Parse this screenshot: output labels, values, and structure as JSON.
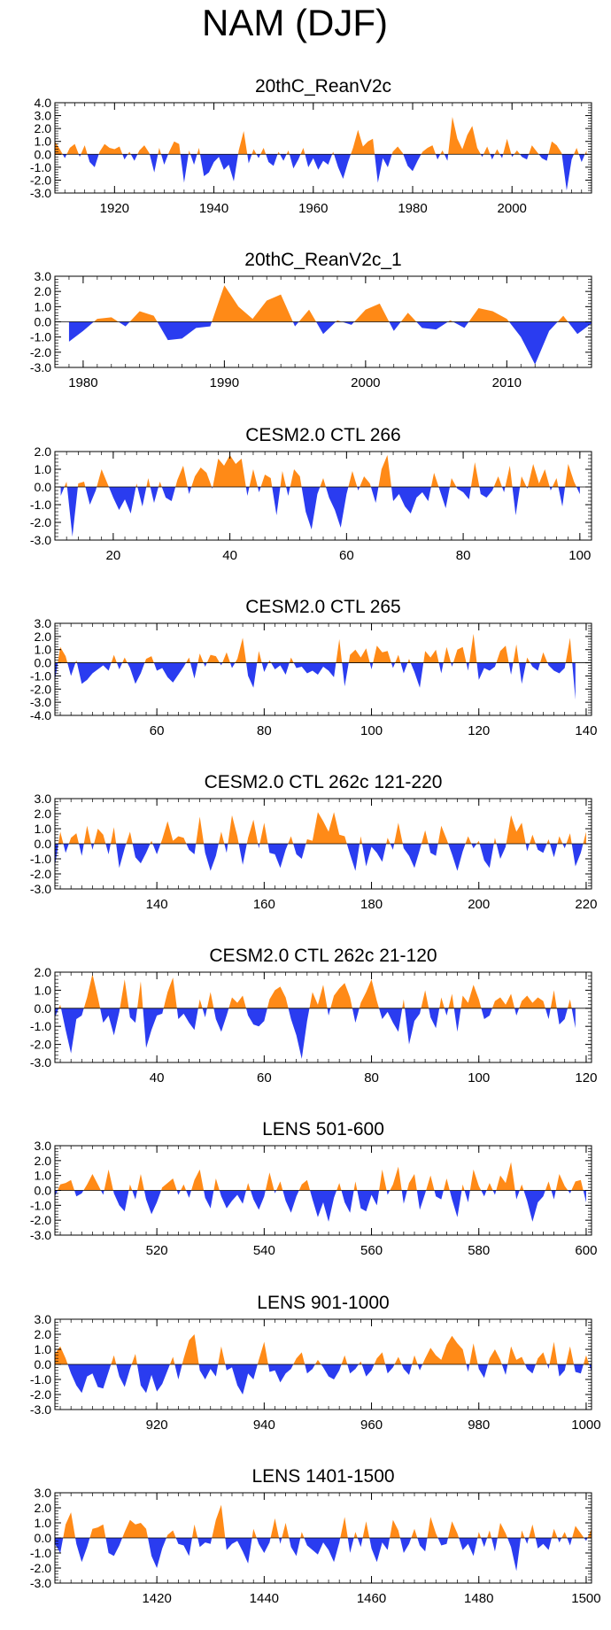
{
  "page": {
    "title": "NAM (DJF)"
  },
  "colors": {
    "positive": "#ff8a17",
    "negative": "#2a3cf0",
    "axis": "#000000"
  },
  "chart_data": [
    {
      "type": "area",
      "title": "20thC_ReanV2c",
      "xlim": [
        1908,
        2016
      ],
      "ylim": [
        -3.0,
        4.0
      ],
      "yticks": [
        "4.0",
        "3.0",
        "2.0",
        "1.0",
        "0.0",
        "-1.0",
        "-2.0",
        "-3.0"
      ],
      "xticks": [
        "1920",
        "1940",
        "1960",
        "1980",
        "2000"
      ],
      "x_start": 1908,
      "values": [
        1.0,
        0.4,
        -0.3,
        0.5,
        0.8,
        -0.2,
        0.7,
        -0.6,
        -1.0,
        0.2,
        0.8,
        0.5,
        0.4,
        0.6,
        -0.4,
        0.2,
        -0.5,
        0.3,
        0.7,
        0.1,
        -1.4,
        0.5,
        -0.8,
        0.2,
        1.0,
        0.8,
        -2.2,
        0.3,
        -0.8,
        0.5,
        -1.7,
        -1.4,
        -0.6,
        -0.2,
        -1.2,
        -0.8,
        -2.1,
        0.3,
        1.8,
        -0.7,
        0.4,
        -0.3,
        0.5,
        -0.6,
        -0.9,
        0.2,
        -0.5,
        0.3,
        -1.1,
        -0.4,
        0.5,
        -1.0,
        -0.3,
        -1.2,
        -0.5,
        -0.8,
        0.2,
        -1.0,
        -1.9,
        -0.6,
        0.5,
        1.9,
        0.6,
        1.0,
        1.2,
        -2.2,
        -0.3,
        -1.0,
        0.2,
        0.6,
        0.1,
        -0.9,
        -1.3,
        -0.5,
        0.2,
        0.5,
        0.7,
        -0.4,
        0.3,
        -0.5,
        2.9,
        1.2,
        0.4,
        1.5,
        2.2,
        0.5,
        -0.2,
        0.6,
        -0.4,
        0.4,
        -0.3,
        1.2,
        -0.2,
        0.3,
        -0.2,
        -0.4,
        0.7,
        0.2,
        -0.3,
        -0.5,
        1.0,
        0.7,
        0.1,
        -2.8,
        -0.4,
        0.5,
        -0.6,
        0.3
      ]
    },
    {
      "type": "area",
      "title": "20thC_ReanV2c_1",
      "xlim": [
        1978,
        2016
      ],
      "ylim": [
        -3.0,
        3.0
      ],
      "yticks": [
        "3.0",
        "2.0",
        "1.0",
        "0.0",
        "-1.0",
        "-2.0",
        "-3.0"
      ],
      "xticks": [
        "1980",
        "1990",
        "2000",
        "2010"
      ],
      "x_start": 1979,
      "values": [
        -1.3,
        -0.6,
        0.2,
        0.3,
        -0.3,
        0.7,
        0.4,
        -1.2,
        -1.1,
        -0.4,
        -0.3,
        2.4,
        1.0,
        0.2,
        1.4,
        1.8,
        -0.3,
        0.8,
        -0.8,
        0.1,
        -0.2,
        0.8,
        1.2,
        -0.6,
        0.6,
        -0.4,
        -0.5,
        0.1,
        -0.4,
        0.9,
        0.7,
        0.2,
        -1.0,
        -2.8,
        -0.6,
        0.4,
        -0.8,
        -0.1
      ]
    },
    {
      "type": "area",
      "title": "CESM2.0 CTL 266",
      "xlim": [
        10,
        102
      ],
      "ylim": [
        -3.0,
        2.0
      ],
      "yticks": [
        "2.0",
        "1.0",
        "0.0",
        "-1.0",
        "-2.0",
        "-3.0"
      ],
      "xticks": [
        "20",
        "40",
        "60",
        "80",
        "100"
      ],
      "x_start": 11,
      "values": [
        -0.5,
        0.3,
        -2.8,
        0.2,
        0.3,
        -1.0,
        -0.2,
        1.0,
        0.2,
        -0.6,
        -1.3,
        -0.7,
        -1.5,
        0.2,
        -1.1,
        0.5,
        -0.9,
        0.3,
        -0.6,
        -0.8,
        0.4,
        1.2,
        -0.4,
        0.6,
        1.1,
        0.8,
        -0.1,
        1.6,
        1.2,
        1.8,
        1.3,
        1.6,
        -0.5,
        1.0,
        -0.3,
        0.7,
        0.5,
        -1.6,
        0.9,
        -0.5,
        1.0,
        0.6,
        -1.4,
        -2.4,
        -0.4,
        0.5,
        -0.6,
        -1.3,
        -2.3,
        -0.4,
        0.9,
        -0.2,
        0.6,
        0.2,
        -0.9,
        1.0,
        1.8,
        -0.8,
        -0.4,
        -1.1,
        -1.5,
        -0.6,
        -0.3,
        -0.8,
        0.8,
        -0.2,
        -1.2,
        0.5,
        -0.1,
        -0.3,
        -0.7,
        1.4,
        -0.4,
        -0.6,
        -0.2,
        0.6,
        -0.3,
        1.2,
        -1.6,
        0.6,
        -0.1,
        1.3,
        0.2,
        1.0,
        -0.2,
        0.5,
        -1.1,
        1.3,
        0.3,
        -0.4
      ]
    },
    {
      "type": "area",
      "title": "CESM2.0 CTL 265",
      "xlim": [
        41,
        141
      ],
      "ylim": [
        -4.0,
        3.0
      ],
      "yticks": [
        "3.0",
        "2.0",
        "1.0",
        "0.0",
        "-1.0",
        "-2.0",
        "-3.0",
        "-4.0"
      ],
      "xticks": [
        "60",
        "80",
        "100",
        "120",
        "140"
      ],
      "x_start": 41,
      "values": [
        -1.4,
        1.2,
        0.5,
        -1.0,
        0.2,
        -1.6,
        -1.3,
        -0.8,
        -0.5,
        -0.2,
        -0.6,
        0.6,
        -0.5,
        0.4,
        -0.4,
        -1.6,
        -0.8,
        0.3,
        0.5,
        -0.6,
        -0.4,
        -1.1,
        -1.5,
        -0.9,
        -0.3,
        0.4,
        -1.2,
        0.7,
        -0.3,
        0.6,
        0.5,
        -0.2,
        0.8,
        -0.4,
        0.3,
        1.9,
        -1.0,
        -1.9,
        0.9,
        -0.7,
        0.2,
        -0.5,
        -0.2,
        -0.9,
        0.4,
        -0.4,
        -0.3,
        -0.8,
        -0.6,
        -0.9,
        -0.3,
        -0.6,
        -1.1,
        1.8,
        -1.8,
        0.6,
        1.0,
        0.4,
        1.1,
        -0.5,
        1.3,
        0.8,
        0.9,
        -0.4,
        0.6,
        -0.8,
        0.3,
        -0.7,
        -1.9,
        0.9,
        0.4,
        1.0,
        -0.8,
        1.2,
        -0.3,
        1.0,
        1.2,
        -0.6,
        2.2,
        -1.3,
        -0.4,
        -0.6,
        -0.3,
        0.9,
        1.3,
        -0.9,
        1.4,
        -1.6,
        0.4,
        -0.3,
        -0.6,
        0.8,
        -0.2,
        -0.6,
        -0.8,
        -0.4,
        1.9,
        -2.8
      ]
    },
    {
      "type": "area",
      "title": "CESM2.0 CTL 262c 121-220",
      "xlim": [
        121,
        221
      ],
      "ylim": [
        -3.0,
        3.0
      ],
      "yticks": [
        "3.0",
        "2.0",
        "1.0",
        "0.0",
        "-1.0",
        "-2.0",
        "-3.0"
      ],
      "xticks": [
        "140",
        "160",
        "180",
        "200",
        "220"
      ],
      "x_start": 121,
      "values": [
        -1.5,
        0.8,
        -0.6,
        0.4,
        0.7,
        -0.8,
        1.2,
        -0.4,
        1.0,
        0.6,
        -0.7,
        1.1,
        -1.6,
        -0.3,
        0.8,
        -0.9,
        -1.3,
        -0.6,
        0.2,
        -0.7,
        0.3,
        1.5,
        0.2,
        0.5,
        0.4,
        -0.4,
        -0.7,
        1.8,
        -0.6,
        -1.8,
        -0.8,
        0.8,
        -0.6,
        1.9,
        0.5,
        -1.4,
        0.4,
        1.6,
        -0.3,
        1.4,
        -0.6,
        -0.7,
        -1.6,
        -0.4,
        0.5,
        -0.7,
        -1.0,
        0.3,
        0.2,
        2.1,
        1.5,
        0.8,
        2.1,
        0.6,
        0.5,
        -0.7,
        -1.8,
        0.5,
        -1.5,
        -0.2,
        -0.6,
        -1.2,
        0.4,
        -0.4,
        1.4,
        -0.3,
        -0.8,
        -1.6,
        -0.4,
        0.9,
        -0.6,
        -0.8,
        1.2,
        0.3,
        -0.7,
        -1.8,
        -0.5,
        0.5,
        -0.3,
        0.2,
        -1.1,
        -1.6,
        0.4,
        -1.0,
        -0.2,
        1.9,
        0.8,
        1.4,
        -0.5,
        0.6,
        -0.4,
        -0.6,
        0.3,
        -0.9,
        0.5,
        -0.3,
        0.7,
        -1.5,
        -0.6,
        0.8
      ]
    },
    {
      "type": "area",
      "title": "CESM2.0 CTL 262c 21-120",
      "xlim": [
        21,
        121
      ],
      "ylim": [
        -3.0,
        2.0
      ],
      "yticks": [
        "2.0",
        "1.0",
        "0.0",
        "-1.0",
        "-2.0",
        "-3.0"
      ],
      "xticks": [
        "40",
        "60",
        "80",
        "100",
        "120"
      ],
      "x_start": 21,
      "values": [
        -0.5,
        0.2,
        -1.2,
        -2.5,
        -0.6,
        -0.4,
        0.6,
        1.9,
        0.6,
        -0.8,
        -0.4,
        -1.5,
        -0.2,
        1.6,
        -0.5,
        -0.8,
        1.5,
        -2.2,
        -1.2,
        -0.4,
        -0.3,
        0.9,
        1.7,
        -0.6,
        -0.3,
        -0.8,
        -1.2,
        0.5,
        -0.5,
        0.9,
        -0.6,
        -1.3,
        -0.4,
        0.6,
        0.3,
        0.7,
        -0.4,
        -0.9,
        -1.0,
        -0.7,
        0.5,
        1.0,
        1.2,
        0.6,
        -0.6,
        -1.5,
        -2.8,
        -0.7,
        0.9,
        0.2,
        1.3,
        -0.4,
        0.7,
        1.1,
        1.4,
        0.6,
        -0.8,
        0.3,
        0.9,
        1.6,
        0.4,
        -0.6,
        -0.2,
        -0.8,
        -1.3,
        0.5,
        -2.0,
        -0.7,
        -0.3,
        1.0,
        -0.5,
        -1.1,
        0.6,
        -0.4,
        0.8,
        -1.3,
        0.7,
        0.3,
        1.3,
        0.5,
        -0.6,
        -0.4,
        0.4,
        0.6,
        0.2,
        0.8,
        -0.4,
        0.4,
        0.7,
        0.3,
        0.6,
        0.4,
        -0.6,
        1.0,
        -0.9,
        -0.6,
        0.5,
        -1.1
      ]
    },
    {
      "type": "area",
      "title": "LENS 501-600",
      "xlim": [
        501,
        601
      ],
      "ylim": [
        -3.0,
        3.0
      ],
      "yticks": [
        "3.0",
        "2.0",
        "1.0",
        "0.0",
        "-1.0",
        "-2.0",
        "-3.0"
      ],
      "xticks": [
        "520",
        "540",
        "560",
        "580",
        "600"
      ],
      "x_start": 501,
      "values": [
        -0.4,
        0.4,
        0.5,
        0.7,
        -0.4,
        -0.2,
        0.4,
        1.1,
        0.4,
        -0.3,
        1.4,
        -0.2,
        -1.0,
        -1.4,
        0.4,
        -0.6,
        1.1,
        -0.6,
        -1.6,
        -0.8,
        0.2,
        0.5,
        0.8,
        -0.3,
        0.4,
        -0.5,
        0.7,
        1.4,
        -0.5,
        -1.2,
        0.8,
        -0.4,
        -1.2,
        -0.7,
        -0.3,
        -0.9,
        0.5,
        -0.6,
        -1.3,
        -0.4,
        1.2,
        -0.2,
        0.6,
        -0.7,
        -1.5,
        -0.4,
        0.4,
        0.7,
        -0.6,
        -1.8,
        -0.8,
        -2.1,
        -0.5,
        0.5,
        -0.8,
        -1.5,
        0.6,
        -1.2,
        -1.4,
        -0.3,
        -1.0,
        1.4,
        -0.3,
        0.4,
        1.6,
        -0.9,
        0.5,
        1.1,
        -1.3,
        -0.2,
        1.0,
        -0.4,
        -0.6,
        0.8,
        -0.6,
        -1.8,
        0.4,
        -0.8,
        1.4,
        0.3,
        -0.4,
        0.5,
        -0.3,
        1.0,
        0.5,
        1.9,
        -0.6,
        0.4,
        -0.7,
        -2.1,
        -0.8,
        -0.4,
        0.6,
        -0.6,
        1.1,
        0.3,
        -0.2,
        0.6,
        0.7,
        -0.8
      ]
    },
    {
      "type": "area",
      "title": "LENS 901-1000",
      "xlim": [
        901,
        1001
      ],
      "ylim": [
        -3.0,
        3.0
      ],
      "yticks": [
        "3.0",
        "2.0",
        "1.0",
        "0.0",
        "-1.0",
        "-2.0",
        "-3.0"
      ],
      "xticks": [
        "920",
        "940",
        "960",
        "980",
        "1000"
      ],
      "x_start": 901,
      "values": [
        0.7,
        1.2,
        0.4,
        -0.6,
        -1.4,
        -1.9,
        -0.8,
        -0.6,
        -1.5,
        -1.6,
        -0.5,
        0.6,
        -0.8,
        -1.5,
        -0.3,
        0.7,
        -1.4,
        -1.9,
        -0.7,
        -1.8,
        -1.3,
        -0.4,
        0.5,
        -1.0,
        0.4,
        1.6,
        2.0,
        -0.4,
        -1.0,
        -0.3,
        -0.8,
        1.2,
        -0.4,
        -0.2,
        -1.4,
        -2.0,
        -0.6,
        -1.0,
        0.3,
        1.5,
        -0.5,
        -0.4,
        -1.2,
        -0.6,
        -0.3,
        0.4,
        0.8,
        -0.6,
        -0.3,
        0.3,
        -0.2,
        -0.8,
        -1.0,
        -0.4,
        0.6,
        -0.6,
        -0.3,
        0.2,
        -0.8,
        -0.4,
        0.4,
        0.8,
        -0.6,
        -0.2,
        0.5,
        -0.3,
        -0.7,
        0.6,
        -0.4,
        0.4,
        1.1,
        0.6,
        0.3,
        1.3,
        1.9,
        1.4,
        1.0,
        -0.5,
        1.4,
        -0.3,
        -0.9,
        0.4,
        1.0,
        0.3,
        -0.7,
        1.2,
        0.3,
        0.5,
        -0.3,
        -0.6,
        0.4,
        0.8,
        -0.3,
        1.5,
        -0.8,
        -0.4,
        1.2,
        -0.5,
        -0.6,
        0.6,
        -0.5
      ]
    },
    {
      "type": "area",
      "title": "LENS 1401-1500",
      "xlim": [
        1401,
        1501
      ],
      "ylim": [
        -3.0,
        3.0
      ],
      "yticks": [
        "3.0",
        "2.0",
        "1.0",
        "0.0",
        "-1.0",
        "-2.0",
        "-3.0"
      ],
      "xticks": [
        "1420",
        "1440",
        "1460",
        "1480",
        "1500"
      ],
      "x_start": 1401,
      "values": [
        -0.4,
        -1.0,
        0.9,
        1.7,
        -0.4,
        -1.6,
        -0.6,
        0.6,
        0.7,
        0.9,
        -1.0,
        -1.2,
        -0.5,
        0.4,
        1.2,
        0.9,
        1.0,
        0.6,
        -1.2,
        -2.0,
        -0.7,
        0.2,
        0.5,
        -0.4,
        -0.5,
        -1.2,
        0.9,
        -0.6,
        -0.3,
        -0.4,
        1.2,
        2.2,
        -0.8,
        -0.4,
        -0.2,
        -0.9,
        -1.7,
        0.6,
        -0.4,
        -1.0,
        -0.3,
        1.3,
        -0.4,
        1.0,
        -0.6,
        -1.2,
        0.4,
        -0.5,
        -0.8,
        -1.1,
        -0.3,
        -0.8,
        -1.6,
        -0.3,
        1.4,
        -1.0,
        0.4,
        -0.6,
        1.1,
        -0.7,
        -1.6,
        -0.3,
        -0.8,
        1.2,
        0.5,
        -1.0,
        -0.4,
        0.6,
        -0.5,
        -0.9,
        1.4,
        0.3,
        -0.5,
        -0.4,
        1.1,
        0.3,
        -0.8,
        -0.4,
        -1.2,
        0.4,
        -0.6,
        0.5,
        -0.9,
        1.0,
        0.3,
        -0.6,
        -2.2,
        0.5,
        -0.4,
        0.9,
        -0.7,
        -0.4,
        -0.8,
        0.6,
        -0.3,
        0.4,
        -0.5,
        0.8,
        0.3,
        -0.2,
        0.6
      ]
    }
  ]
}
